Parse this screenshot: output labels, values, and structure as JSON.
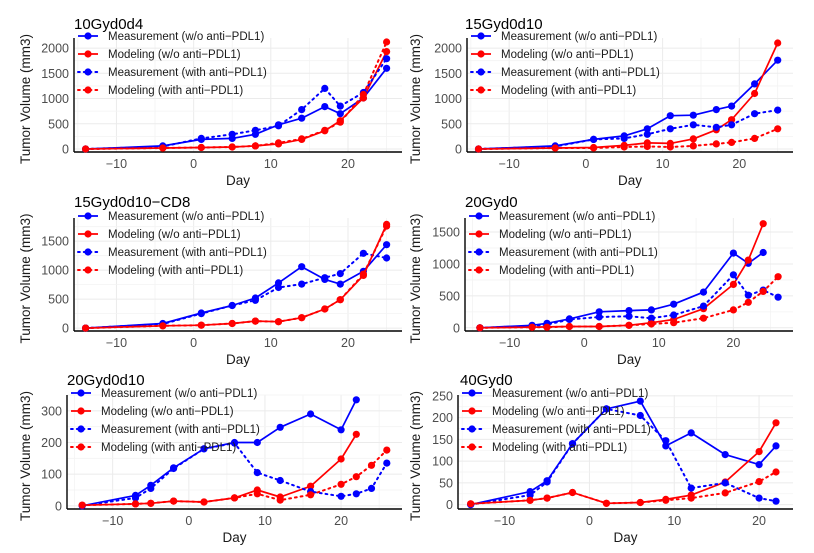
{
  "chart_data": [
    {
      "type": "line",
      "title": "10Gyd0d4",
      "xlabel": "Day",
      "ylabel": "Tumor Volume (mm3)",
      "xlim": [
        -15.5,
        27
      ],
      "ylim": [
        -60,
        2200
      ],
      "xticks": [
        -10,
        0,
        10,
        20
      ],
      "yticks": [
        0,
        500,
        1000,
        1500,
        2000
      ],
      "grid": true,
      "legend_position": "top-left",
      "series": [
        {
          "name": "Measurement (w/o anti−PDL1)",
          "color": "#0000FF",
          "style": "solid",
          "x": [
            -14,
            -4,
            1,
            5,
            8,
            11,
            14,
            17,
            19,
            22,
            25
          ],
          "y": [
            0,
            60,
            190,
            210,
            290,
            480,
            610,
            840,
            700,
            1010,
            1600
          ]
        },
        {
          "name": "Modeling (w/o anti−PDL1)",
          "color": "#FF0000",
          "style": "solid",
          "x": [
            -14,
            -4,
            1,
            5,
            8,
            11,
            14,
            17,
            19,
            22,
            25
          ],
          "y": [
            0,
            20,
            30,
            40,
            60,
            100,
            190,
            360,
            560,
            1010,
            1930
          ]
        },
        {
          "name": "Measurement (with anti−PDL1)",
          "color": "#0000FF",
          "style": "dotted",
          "x": [
            -14,
            -4,
            1,
            5,
            8,
            11,
            14,
            17,
            19,
            22,
            25
          ],
          "y": [
            0,
            50,
            210,
            290,
            370,
            460,
            780,
            1200,
            850,
            1120,
            1790
          ]
        },
        {
          "name": "Modeling (with anti−PDL1)",
          "color": "#FF0000",
          "style": "dotted",
          "x": [
            -14,
            -4,
            1,
            5,
            8,
            11,
            14,
            17,
            19,
            22,
            25
          ],
          "y": [
            0,
            20,
            30,
            40,
            60,
            120,
            200,
            370,
            530,
            1080,
            2120
          ]
        }
      ]
    },
    {
      "type": "line",
      "title": "15Gyd0d10",
      "xlabel": "Day",
      "ylabel": "Tumor Volume (mm3)",
      "xlim": [
        -15.5,
        27
      ],
      "ylim": [
        -60,
        2200
      ],
      "xticks": [
        -10,
        0,
        10,
        20
      ],
      "yticks": [
        0,
        500,
        1000,
        1500,
        2000
      ],
      "grid": true,
      "legend_position": "top-left",
      "series": [
        {
          "name": "Measurement (w/o anti−PDL1)",
          "color": "#0000FF",
          "style": "solid",
          "x": [
            -14,
            -4,
            1,
            5,
            8,
            11,
            14,
            17,
            19,
            22,
            25
          ],
          "y": [
            0,
            60,
            190,
            260,
            400,
            660,
            670,
            780,
            850,
            1290,
            1760
          ]
        },
        {
          "name": "Modeling (w/o anti−PDL1)",
          "color": "#FF0000",
          "style": "solid",
          "x": [
            -14,
            -4,
            1,
            5,
            8,
            11,
            14,
            17,
            19,
            22,
            25
          ],
          "y": [
            0,
            20,
            30,
            70,
            120,
            110,
            200,
            380,
            580,
            1100,
            2100
          ]
        },
        {
          "name": "Measurement (with anti−PDL1)",
          "color": "#0000FF",
          "style": "dotted",
          "x": [
            -14,
            -4,
            1,
            5,
            8,
            11,
            14,
            17,
            19,
            22,
            25
          ],
          "y": [
            0,
            50,
            190,
            210,
            290,
            400,
            480,
            430,
            480,
            700,
            770
          ]
        },
        {
          "name": "Modeling (with anti−PDL1)",
          "color": "#FF0000",
          "style": "dotted",
          "x": [
            -14,
            -4,
            1,
            5,
            8,
            11,
            14,
            17,
            19,
            22,
            25
          ],
          "y": [
            0,
            20,
            20,
            40,
            50,
            40,
            60,
            100,
            130,
            210,
            400
          ]
        }
      ]
    },
    {
      "type": "line",
      "title": "15Gyd0d10−CD8",
      "xlabel": "Day",
      "ylabel": "Tumor Volume (mm3)",
      "xlim": [
        -15.5,
        27
      ],
      "ylim": [
        -50,
        1900
      ],
      "xticks": [
        -10,
        0,
        10,
        20
      ],
      "yticks": [
        0,
        500,
        1000,
        1500
      ],
      "grid": true,
      "legend_position": "top-left",
      "series": [
        {
          "name": "Measurement (w/o anti−PDL1)",
          "color": "#0000FF",
          "style": "solid",
          "x": [
            -14,
            -4,
            1,
            5,
            8,
            11,
            14,
            17,
            19,
            22,
            25
          ],
          "y": [
            0,
            80,
            260,
            390,
            520,
            780,
            1060,
            840,
            760,
            980,
            1440
          ]
        },
        {
          "name": "Modeling (w/o anti−PDL1)",
          "color": "#FF0000",
          "style": "solid",
          "x": [
            -14,
            -4,
            1,
            5,
            8,
            11,
            14,
            17,
            19,
            22,
            25
          ],
          "y": [
            0,
            40,
            50,
            80,
            120,
            110,
            180,
            330,
            490,
            910,
            1790
          ]
        },
        {
          "name": "Measurement (with anti−PDL1)",
          "color": "#0000FF",
          "style": "dotted",
          "x": [
            -14,
            -4,
            1,
            5,
            8,
            11,
            14,
            17,
            19,
            22,
            25
          ],
          "y": [
            0,
            70,
            250,
            390,
            480,
            700,
            760,
            870,
            940,
            1290,
            1210
          ]
        },
        {
          "name": "Modeling (with anti−PDL1)",
          "color": "#FF0000",
          "style": "dotted",
          "x": [
            -14,
            -4,
            1,
            5,
            8,
            11,
            14,
            17,
            19,
            22,
            25
          ],
          "y": [
            0,
            40,
            50,
            80,
            120,
            110,
            180,
            330,
            490,
            930,
            1760
          ]
        }
      ]
    },
    {
      "type": "line",
      "title": "20Gyd0",
      "xlabel": "Day",
      "ylabel": "Tumor Volume (mm3)",
      "xlim": [
        -16,
        28
      ],
      "ylim": [
        -50,
        1720
      ],
      "xticks": [
        -10,
        0,
        10,
        20
      ],
      "yticks": [
        0,
        500,
        1000,
        1500
      ],
      "grid": true,
      "legend_position": "top-left",
      "series": [
        {
          "name": "Measurement (w/o anti−PDL1)",
          "color": "#0000FF",
          "style": "solid",
          "x": [
            -14,
            -7,
            -5,
            -2,
            2,
            6,
            9,
            12,
            16,
            20,
            22,
            24
          ],
          "y": [
            0,
            40,
            70,
            140,
            250,
            270,
            280,
            370,
            560,
            1170,
            1010,
            1180
          ]
        },
        {
          "name": "Modeling (w/o anti−PDL1)",
          "color": "#FF0000",
          "style": "solid",
          "x": [
            -14,
            -7,
            -5,
            -2,
            2,
            6,
            9,
            12,
            16,
            20,
            22,
            24
          ],
          "y": [
            0,
            10,
            15,
            20,
            20,
            40,
            80,
            130,
            300,
            680,
            1060,
            1630
          ]
        },
        {
          "name": "Measurement (with anti−PDL1)",
          "color": "#0000FF",
          "style": "dotted",
          "x": [
            -14,
            -7,
            -5,
            -2,
            2,
            6,
            9,
            12,
            16,
            20,
            22,
            24,
            26
          ],
          "y": [
            0,
            30,
            50,
            130,
            170,
            180,
            150,
            200,
            340,
            830,
            510,
            590,
            480
          ]
        },
        {
          "name": "Modeling (with anti−PDL1)",
          "color": "#FF0000",
          "style": "dotted",
          "x": [
            -14,
            -7,
            -5,
            -2,
            2,
            6,
            9,
            12,
            16,
            20,
            22,
            24,
            26
          ],
          "y": [
            0,
            10,
            10,
            20,
            20,
            40,
            60,
            80,
            150,
            280,
            400,
            570,
            800
          ]
        }
      ]
    },
    {
      "type": "line",
      "title": "20Gyd0d10",
      "xlabel": "Day",
      "ylabel": "Tumor Volume (mm3)",
      "xlim": [
        -16,
        28
      ],
      "ylim": [
        -10,
        350
      ],
      "xticks": [
        -10,
        0,
        10,
        20
      ],
      "yticks": [
        0,
        100,
        200,
        300
      ],
      "grid": true,
      "legend_position": "top-left",
      "series": [
        {
          "name": "Measurement (w/o anti−PDL1)",
          "color": "#0000FF",
          "style": "solid",
          "x": [
            -14,
            -7,
            -5,
            -2,
            2,
            6,
            9,
            12,
            16,
            20,
            22
          ],
          "y": [
            0,
            33,
            65,
            120,
            180,
            200,
            200,
            248,
            290,
            240,
            335
          ]
        },
        {
          "name": "Modeling (w/o anti−PDL1)",
          "color": "#FF0000",
          "style": "solid",
          "x": [
            -14,
            -7,
            -5,
            -2,
            2,
            6,
            9,
            12,
            16,
            20,
            22
          ],
          "y": [
            2,
            6,
            8,
            15,
            12,
            25,
            50,
            28,
            62,
            148,
            226
          ]
        },
        {
          "name": "Measurement (with anti−PDL1)",
          "color": "#0000FF",
          "style": "dotted",
          "x": [
            -14,
            -7,
            -5,
            -2,
            2,
            6,
            9,
            12,
            16,
            20,
            22,
            24,
            26
          ],
          "y": [
            0,
            25,
            55,
            118,
            180,
            198,
            105,
            80,
            45,
            30,
            38,
            55,
            135
          ]
        },
        {
          "name": "Modeling (with anti−PDL1)",
          "color": "#FF0000",
          "style": "dotted",
          "x": [
            -14,
            -7,
            -5,
            -2,
            2,
            6,
            9,
            12,
            16,
            20,
            22,
            24,
            26
          ],
          "y": [
            2,
            6,
            8,
            15,
            12,
            25,
            38,
            18,
            35,
            68,
            92,
            128,
            176
          ]
        }
      ]
    },
    {
      "type": "line",
      "title": "40Gyd0",
      "xlabel": "Day",
      "ylabel": "Tumor Volume (mm3)",
      "xlim": [
        -15.5,
        24
      ],
      "ylim": [
        -10,
        252
      ],
      "xticks": [
        -10,
        0,
        10,
        20
      ],
      "yticks": [
        0,
        50,
        100,
        150,
        200,
        250
      ],
      "grid": true,
      "legend_position": "top-left",
      "series": [
        {
          "name": "Measurement (w/o anti−PDL1)",
          "color": "#0000FF",
          "style": "solid",
          "x": [
            -14,
            -7,
            -5,
            -2,
            2,
            6,
            9,
            12,
            16,
            20,
            22
          ],
          "y": [
            0,
            30,
            55,
            140,
            220,
            238,
            135,
            165,
            115,
            92,
            135
          ]
        },
        {
          "name": "Modeling (w/o anti−PDL1)",
          "color": "#FF0000",
          "style": "solid",
          "x": [
            -14,
            -7,
            -5,
            -2,
            2,
            6,
            9,
            12,
            16,
            20,
            22
          ],
          "y": [
            2,
            10,
            15,
            28,
            3,
            5,
            12,
            22,
            52,
            122,
            188
          ]
        },
        {
          "name": "Measurement (with anti−PDL1)",
          "color": "#0000FF",
          "style": "dotted",
          "x": [
            -14,
            -7,
            -5,
            -2,
            2,
            6,
            9,
            12,
            16,
            20,
            22
          ],
          "y": [
            0,
            22,
            52,
            140,
            220,
            205,
            147,
            38,
            50,
            15,
            8
          ]
        },
        {
          "name": "Modeling (with anti−PDL1)",
          "color": "#FF0000",
          "style": "dotted",
          "x": [
            -14,
            -7,
            -5,
            -2,
            2,
            6,
            9,
            12,
            16,
            20,
            22
          ],
          "y": [
            2,
            10,
            15,
            28,
            3,
            5,
            10,
            15,
            27,
            53,
            75
          ]
        }
      ]
    }
  ]
}
